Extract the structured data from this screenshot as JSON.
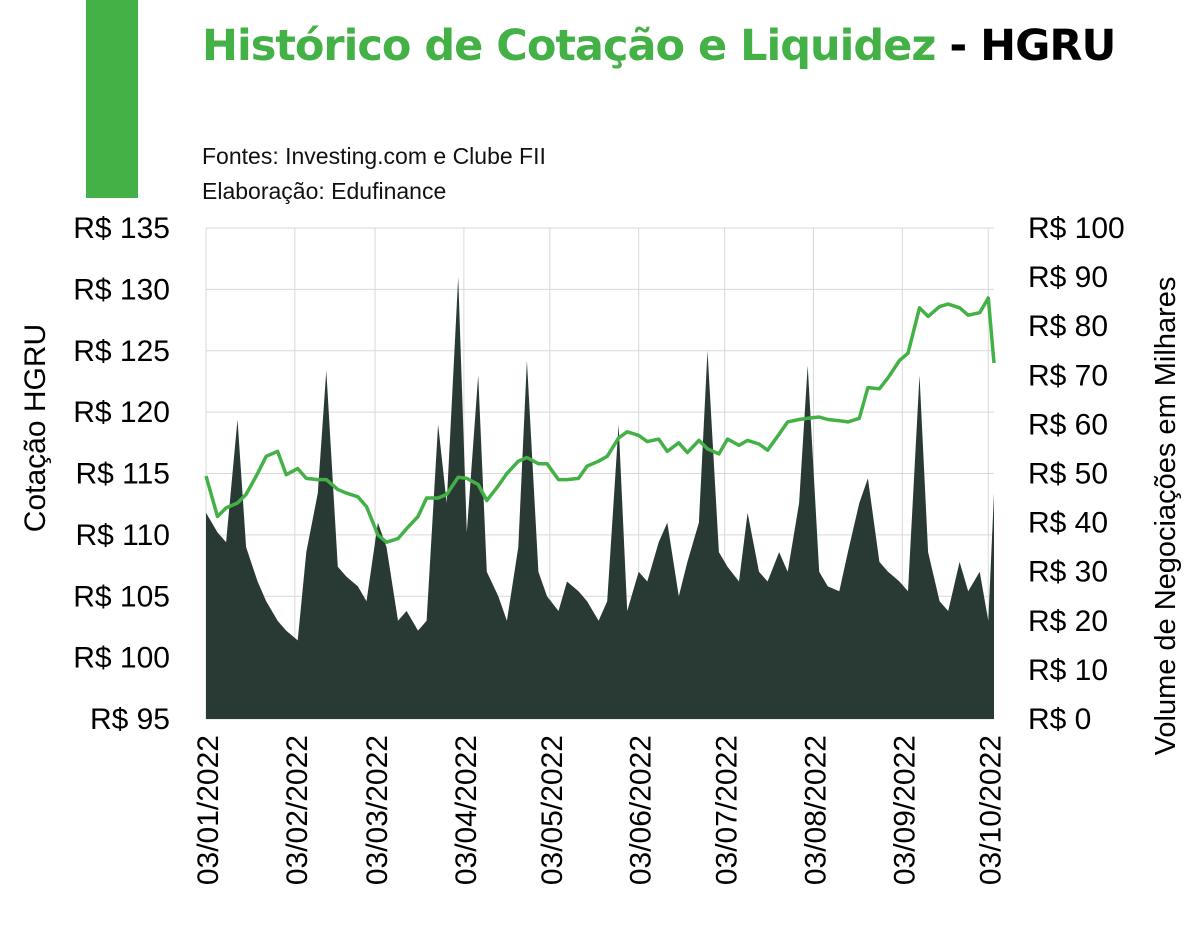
{
  "header": {
    "title_highlight": "Histórico de Cotação e Liquidez",
    "title_rest": " - HGRU",
    "source": "Fontes: Investing.com e Clube FII",
    "author": "Elaboração: Edufinance"
  },
  "colors": {
    "accent": "#43b146",
    "price_line": "#43b146",
    "volume_area": "#293a34",
    "grid": "#d9d9d9"
  },
  "chart_data": {
    "type": "line",
    "title": "Histórico de Cotação e Liquidez - HGRU",
    "ylabel": "Cotação HGRU",
    "y2label": "Volume de Negociações em Milhares",
    "ylim": [
      95,
      135
    ],
    "y2lim": [
      0,
      100
    ],
    "yticks": [
      "R$ 135",
      "R$ 130",
      "R$ 125",
      "R$ 120",
      "R$ 115",
      "R$ 110",
      "R$ 105",
      "R$ 100",
      "R$ 95"
    ],
    "y2ticks": [
      "R$ 100",
      "R$ 90",
      "R$ 80",
      "R$ 70",
      "R$ 60",
      "R$ 50",
      "R$ 40",
      "R$ 30",
      "R$ 20",
      "R$ 10",
      "R$ 0"
    ],
    "xticks": [
      "03/01/2022",
      "03/02/2022",
      "03/03/2022",
      "03/04/2022",
      "03/05/2022",
      "03/06/2022",
      "03/07/2022",
      "03/08/2022",
      "03/09/2022",
      "03/10/2022"
    ],
    "grid": true,
    "series": [
      {
        "name": "Cotação HGRU",
        "axis": "left",
        "style": "line",
        "x": [
          "2022-01-03",
          "2022-01-07",
          "2022-01-10",
          "2022-01-14",
          "2022-01-17",
          "2022-01-21",
          "2022-01-24",
          "2022-01-28",
          "2022-01-31",
          "2022-02-04",
          "2022-02-07",
          "2022-02-11",
          "2022-02-14",
          "2022-02-18",
          "2022-02-21",
          "2022-02-25",
          "2022-02-28",
          "2022-03-04",
          "2022-03-07",
          "2022-03-11",
          "2022-03-14",
          "2022-03-18",
          "2022-03-21",
          "2022-03-25",
          "2022-03-28",
          "2022-04-01",
          "2022-04-04",
          "2022-04-08",
          "2022-04-11",
          "2022-04-15",
          "2022-04-18",
          "2022-04-22",
          "2022-04-25",
          "2022-04-29",
          "2022-05-02",
          "2022-05-06",
          "2022-05-09",
          "2022-05-13",
          "2022-05-16",
          "2022-05-20",
          "2022-05-23",
          "2022-05-27",
          "2022-05-30",
          "2022-06-03",
          "2022-06-06",
          "2022-06-10",
          "2022-06-13",
          "2022-06-17",
          "2022-06-20",
          "2022-06-24",
          "2022-06-27",
          "2022-07-01",
          "2022-07-04",
          "2022-07-08",
          "2022-07-11",
          "2022-07-15",
          "2022-07-18",
          "2022-07-22",
          "2022-07-25",
          "2022-07-29",
          "2022-08-01",
          "2022-08-05",
          "2022-08-08",
          "2022-08-12",
          "2022-08-15",
          "2022-08-19",
          "2022-08-22",
          "2022-08-26",
          "2022-08-29",
          "2022-09-02",
          "2022-09-05",
          "2022-09-09",
          "2022-09-12",
          "2022-09-16",
          "2022-09-19",
          "2022-09-23",
          "2022-09-26",
          "2022-09-30",
          "2022-10-03",
          "2022-10-05"
        ],
        "values": [
          114.8,
          111.5,
          112.2,
          112.6,
          113.3,
          115.0,
          116.4,
          116.8,
          114.9,
          115.4,
          114.6,
          114.5,
          114.5,
          113.7,
          113.4,
          113.1,
          112.3,
          110.0,
          109.4,
          109.7,
          110.5,
          111.5,
          113.0,
          113.0,
          113.3,
          114.7,
          114.6,
          114.1,
          112.8,
          114.0,
          115.0,
          116.0,
          116.3,
          115.8,
          115.8,
          114.5,
          114.5,
          114.6,
          115.6,
          116.0,
          116.4,
          117.9,
          118.4,
          118.1,
          117.6,
          117.8,
          116.8,
          117.5,
          116.7,
          117.7,
          117.0,
          116.6,
          117.8,
          117.3,
          117.7,
          117.4,
          116.9,
          118.2,
          119.2,
          119.4,
          119.5,
          119.6,
          119.4,
          119.3,
          119.2,
          119.5,
          122.0,
          121.9,
          122.8,
          124.2,
          124.8,
          128.5,
          127.8,
          128.6,
          128.8,
          128.5,
          127.9,
          128.1,
          129.3,
          124.0
        ]
      },
      {
        "name": "Volume de Negociações em Milhares",
        "axis": "right",
        "style": "area",
        "x": [
          "2022-01-03",
          "2022-01-07",
          "2022-01-10",
          "2022-01-14",
          "2022-01-17",
          "2022-01-21",
          "2022-01-24",
          "2022-01-28",
          "2022-01-31",
          "2022-02-04",
          "2022-02-07",
          "2022-02-11",
          "2022-02-14",
          "2022-02-18",
          "2022-02-21",
          "2022-02-25",
          "2022-02-28",
          "2022-03-04",
          "2022-03-07",
          "2022-03-11",
          "2022-03-14",
          "2022-03-18",
          "2022-03-21",
          "2022-03-25",
          "2022-03-28",
          "2022-04-01",
          "2022-04-04",
          "2022-04-08",
          "2022-04-11",
          "2022-04-15",
          "2022-04-18",
          "2022-04-22",
          "2022-04-25",
          "2022-04-29",
          "2022-05-02",
          "2022-05-06",
          "2022-05-09",
          "2022-05-13",
          "2022-05-16",
          "2022-05-20",
          "2022-05-23",
          "2022-05-27",
          "2022-05-30",
          "2022-06-03",
          "2022-06-06",
          "2022-06-10",
          "2022-06-13",
          "2022-06-17",
          "2022-06-20",
          "2022-06-24",
          "2022-06-27",
          "2022-07-01",
          "2022-07-04",
          "2022-07-08",
          "2022-07-11",
          "2022-07-15",
          "2022-07-18",
          "2022-07-22",
          "2022-07-25",
          "2022-07-29",
          "2022-08-01",
          "2022-08-05",
          "2022-08-08",
          "2022-08-12",
          "2022-08-15",
          "2022-08-19",
          "2022-08-22",
          "2022-08-26",
          "2022-08-29",
          "2022-09-02",
          "2022-09-05",
          "2022-09-09",
          "2022-09-12",
          "2022-09-16",
          "2022-09-19",
          "2022-09-23",
          "2022-09-26",
          "2022-09-30",
          "2022-10-03",
          "2022-10-05"
        ],
        "values": [
          42,
          38,
          36,
          61,
          35,
          28,
          24,
          20,
          18,
          16,
          34,
          46,
          71,
          31,
          29,
          27,
          24,
          40,
          35,
          20,
          22,
          18,
          20,
          60,
          44,
          90,
          38,
          70,
          30,
          25,
          20,
          35,
          73,
          30,
          25,
          22,
          28,
          26,
          24,
          20,
          24,
          60,
          22,
          30,
          28,
          36,
          40,
          25,
          32,
          40,
          75,
          34,
          31,
          28,
          42,
          30,
          28,
          34,
          30,
          44,
          72,
          30,
          27,
          26,
          34,
          44,
          49,
          32,
          30,
          28,
          26,
          70,
          34,
          24,
          22,
          32,
          26,
          30,
          20,
          46
        ]
      }
    ]
  }
}
